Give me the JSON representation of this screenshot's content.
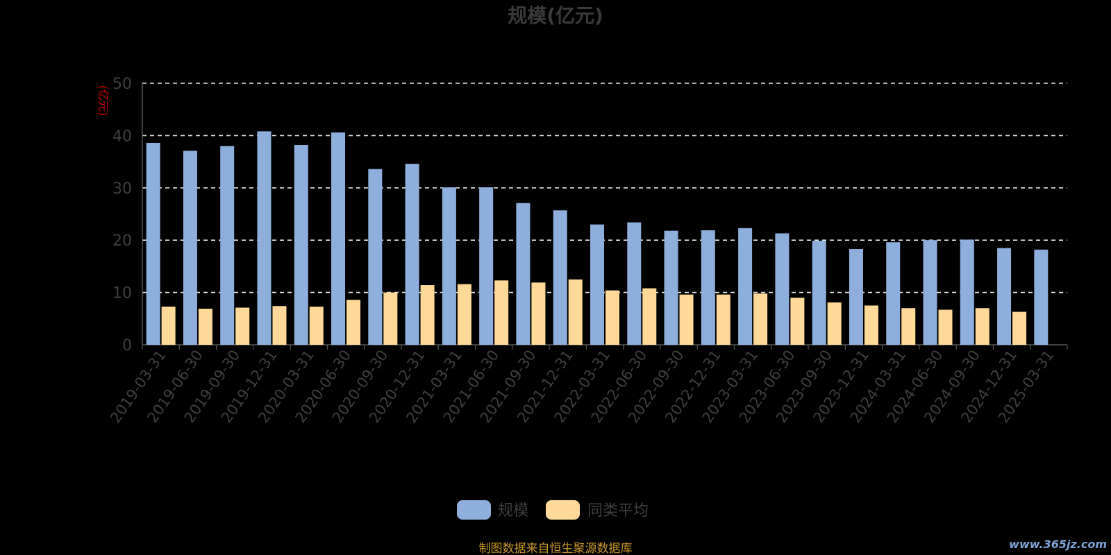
{
  "chart_data": {
    "type": "bar",
    "title": "规模(亿元)",
    "ylabel": "(亿元)",
    "ylim": [
      0,
      50
    ],
    "yticks": [
      0,
      10,
      20,
      30,
      40,
      50
    ],
    "grid": true,
    "legend_position": "bottom-center",
    "categories": [
      "2019-03-31",
      "2019-06-30",
      "2019-09-30",
      "2019-12-31",
      "2020-03-31",
      "2020-06-30",
      "2020-09-30",
      "2020-12-31",
      "2021-03-31",
      "2021-06-30",
      "2021-09-30",
      "2021-12-31",
      "2022-03-31",
      "2022-06-30",
      "2022-09-30",
      "2022-12-31",
      "2023-03-31",
      "2023-06-30",
      "2023-09-30",
      "2023-12-31",
      "2024-03-31",
      "2024-06-30",
      "2024-09-30",
      "2024-12-31",
      "2025-03-31"
    ],
    "series": [
      {
        "name": "规模",
        "color": "#8eaedb",
        "values": [
          38.6,
          37.1,
          38.0,
          40.8,
          38.2,
          40.6,
          33.6,
          34.6,
          30.1,
          30.1,
          27.1,
          25.7,
          23.0,
          23.4,
          21.8,
          21.9,
          22.3,
          21.3,
          19.9,
          18.3,
          19.6,
          20.0,
          20.1,
          18.5,
          18.2
        ]
      },
      {
        "name": "同类平均",
        "color": "#ffd998",
        "values": [
          7.3,
          6.9,
          7.1,
          7.4,
          7.3,
          8.6,
          10.0,
          11.4,
          11.6,
          12.3,
          11.9,
          12.5,
          10.4,
          10.8,
          9.6,
          9.6,
          9.8,
          9.0,
          8.1,
          7.5,
          7.0,
          6.7,
          7.0,
          6.3,
          null
        ]
      }
    ]
  },
  "footer": {
    "source": "制图数据来自恒生聚源数据库",
    "watermark": "www.365jz.com"
  }
}
